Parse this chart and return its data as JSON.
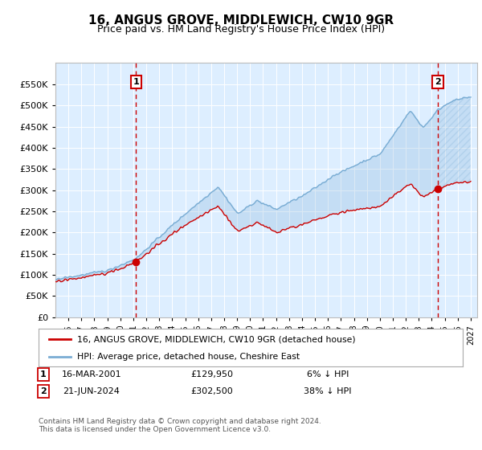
{
  "title": "16, ANGUS GROVE, MIDDLEWICH, CW10 9GR",
  "subtitle": "Price paid vs. HM Land Registry's House Price Index (HPI)",
  "legend_line1": "16, ANGUS GROVE, MIDDLEWICH, CW10 9GR (detached house)",
  "legend_line2": "HPI: Average price, detached house, Cheshire East",
  "annotation1_date": "16-MAR-2001",
  "annotation1_price": "£129,950",
  "annotation1_hpi": "6% ↓ HPI",
  "annotation2_date": "21-JUN-2024",
  "annotation2_price": "£302,500",
  "annotation2_hpi": "38% ↓ HPI",
  "footer": "Contains HM Land Registry data © Crown copyright and database right 2024.\nThis data is licensed under the Open Government Licence v3.0.",
  "hpi_color": "#7aadd4",
  "price_color": "#cc0000",
  "marker_color": "#cc0000",
  "vline_color": "#cc0000",
  "bg_color": "#ddeeff",
  "annotation_box_color": "#cc0000",
  "ylim_min": 0,
  "ylim_max": 600000,
  "yticks": [
    0,
    50000,
    100000,
    150000,
    200000,
    250000,
    300000,
    350000,
    400000,
    450000,
    500000,
    550000
  ],
  "sale1_year_float": 2001.21,
  "sale1_price": 129950,
  "sale2_year_float": 2024.47,
  "sale2_price": 302500,
  "xmin": 1995,
  "xmax": 2027.5
}
